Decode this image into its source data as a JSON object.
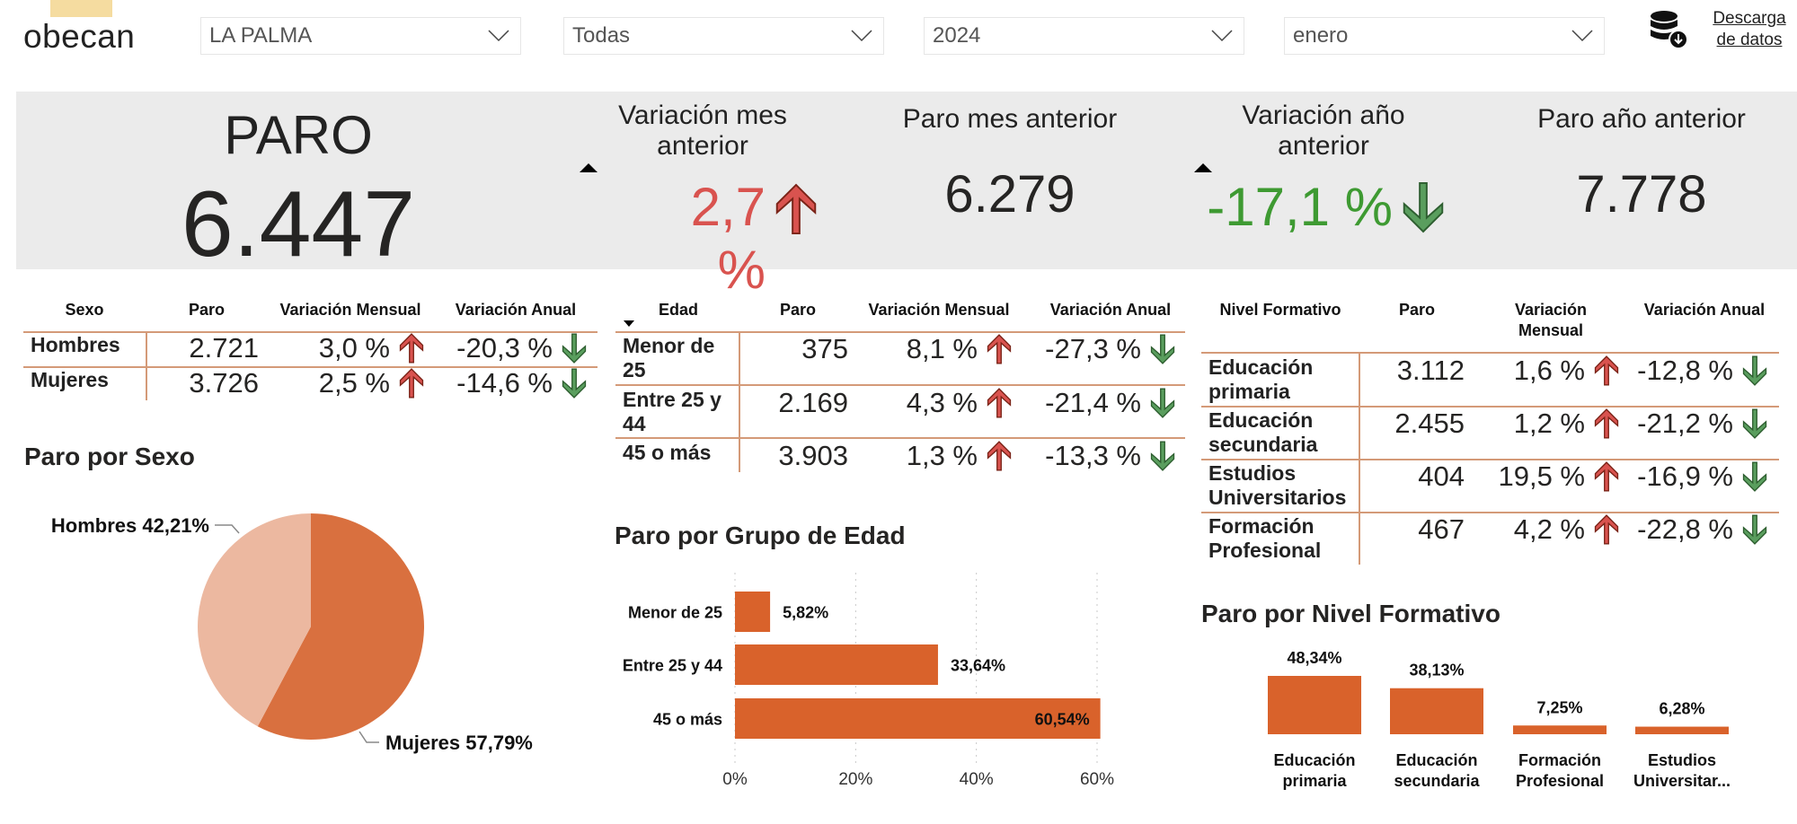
{
  "header": {
    "logo_text": "obecan",
    "filters": [
      {
        "name": "municipio",
        "value": "LA PALMA"
      },
      {
        "name": "sector",
        "value": "Todas"
      },
      {
        "name": "anio",
        "value": "2024"
      },
      {
        "name": "mes",
        "value": "enero"
      }
    ],
    "download_icon": "database-download-icon",
    "download_label_1": "Descarga",
    "download_label_2": "de datos"
  },
  "kpis": {
    "paro_label": "PARO",
    "paro_value": "6.447",
    "var_mes_label_1": "Variación mes",
    "var_mes_label_2": "anterior",
    "var_mes_value": "2,7 %",
    "var_mes_direction": "up",
    "paro_mes_label": "Paro mes anterior",
    "paro_mes_value": "6.279",
    "var_anio_label_1": "Variación año",
    "var_anio_label_2": "anterior",
    "var_anio_value": "-17,1 %",
    "var_anio_direction": "down",
    "paro_anio_label": "Paro año anterior",
    "paro_anio_value": "7.778"
  },
  "colors": {
    "up": "#d9534f",
    "down": "#4f9a55",
    "bar": "#d9622b",
    "pie_hombres": "#ecb8a0",
    "pie_mujeres": "#d9703f",
    "table_line": "#d49a78"
  },
  "tables": {
    "sexo": {
      "headers": [
        "Sexo",
        "Paro",
        "Variación Mensual",
        "Variación Anual"
      ],
      "rows": [
        {
          "label": "Hombres",
          "paro": "2.721",
          "mensual": "3,0 %",
          "anual": "-20,3 %"
        },
        {
          "label": "Mujeres",
          "paro": "3.726",
          "mensual": "2,5 %",
          "anual": "-14,6 %"
        }
      ]
    },
    "edad": {
      "headers": [
        "Edad",
        "Paro",
        "Variación Mensual",
        "Variación Anual"
      ],
      "rows": [
        {
          "label": "Menor de 25",
          "paro": "375",
          "mensual": "8,1 %",
          "anual": "-27,3 %"
        },
        {
          "label": "Entre 25 y 44",
          "paro": "2.169",
          "mensual": "4,3 %",
          "anual": "-21,4 %"
        },
        {
          "label": "45 o más",
          "paro": "3.903",
          "mensual": "1,3 %",
          "anual": "-13,3 %"
        }
      ]
    },
    "nivel": {
      "headers": [
        "Nivel Formativo",
        "Paro",
        "Variación Mensual",
        "Variación Anual"
      ],
      "rows": [
        {
          "label": "Educación primaria",
          "paro": "3.112",
          "mensual": "1,6 %",
          "anual": "-12,8 %"
        },
        {
          "label": "Educación secundaria",
          "paro": "2.455",
          "mensual": "1,2 %",
          "anual": "-21,2 %"
        },
        {
          "label": "Estudios Universitarios",
          "paro": "404",
          "mensual": "19,5 %",
          "anual": "-16,9 %"
        },
        {
          "label": "Formación Profesional",
          "paro": "467",
          "mensual": "4,2 %",
          "anual": "-22,8 %"
        }
      ]
    }
  },
  "chart_data": [
    {
      "type": "pie",
      "title": "Paro por Sexo",
      "categories": [
        "Hombres",
        "Mujeres"
      ],
      "values": [
        42.21,
        57.79
      ],
      "labels": [
        "Hombres 42,21%",
        "Mujeres 57,79%"
      ]
    },
    {
      "type": "bar",
      "orientation": "horizontal",
      "title": "Paro por Grupo de Edad",
      "categories": [
        "Menor de 25",
        "Entre 25 y 44",
        "45 o más"
      ],
      "values": [
        5.82,
        33.64,
        60.54
      ],
      "data_labels": [
        "5,82%",
        "33,64%",
        "60,54%"
      ],
      "xlim": [
        0,
        60
      ],
      "xticks": [
        "0%",
        "20%",
        "40%",
        "60%"
      ],
      "grid": true
    },
    {
      "type": "bar",
      "title": "Paro por Nivel Formativo",
      "categories": [
        "Educación primaria",
        "Educación secundaria",
        "Formación Profesional",
        "Estudios Universitar..."
      ],
      "values": [
        48.34,
        38.13,
        7.25,
        6.28
      ],
      "data_labels": [
        "48,34%",
        "38,13%",
        "7,25%",
        "6,28%"
      ],
      "grid": false
    }
  ]
}
